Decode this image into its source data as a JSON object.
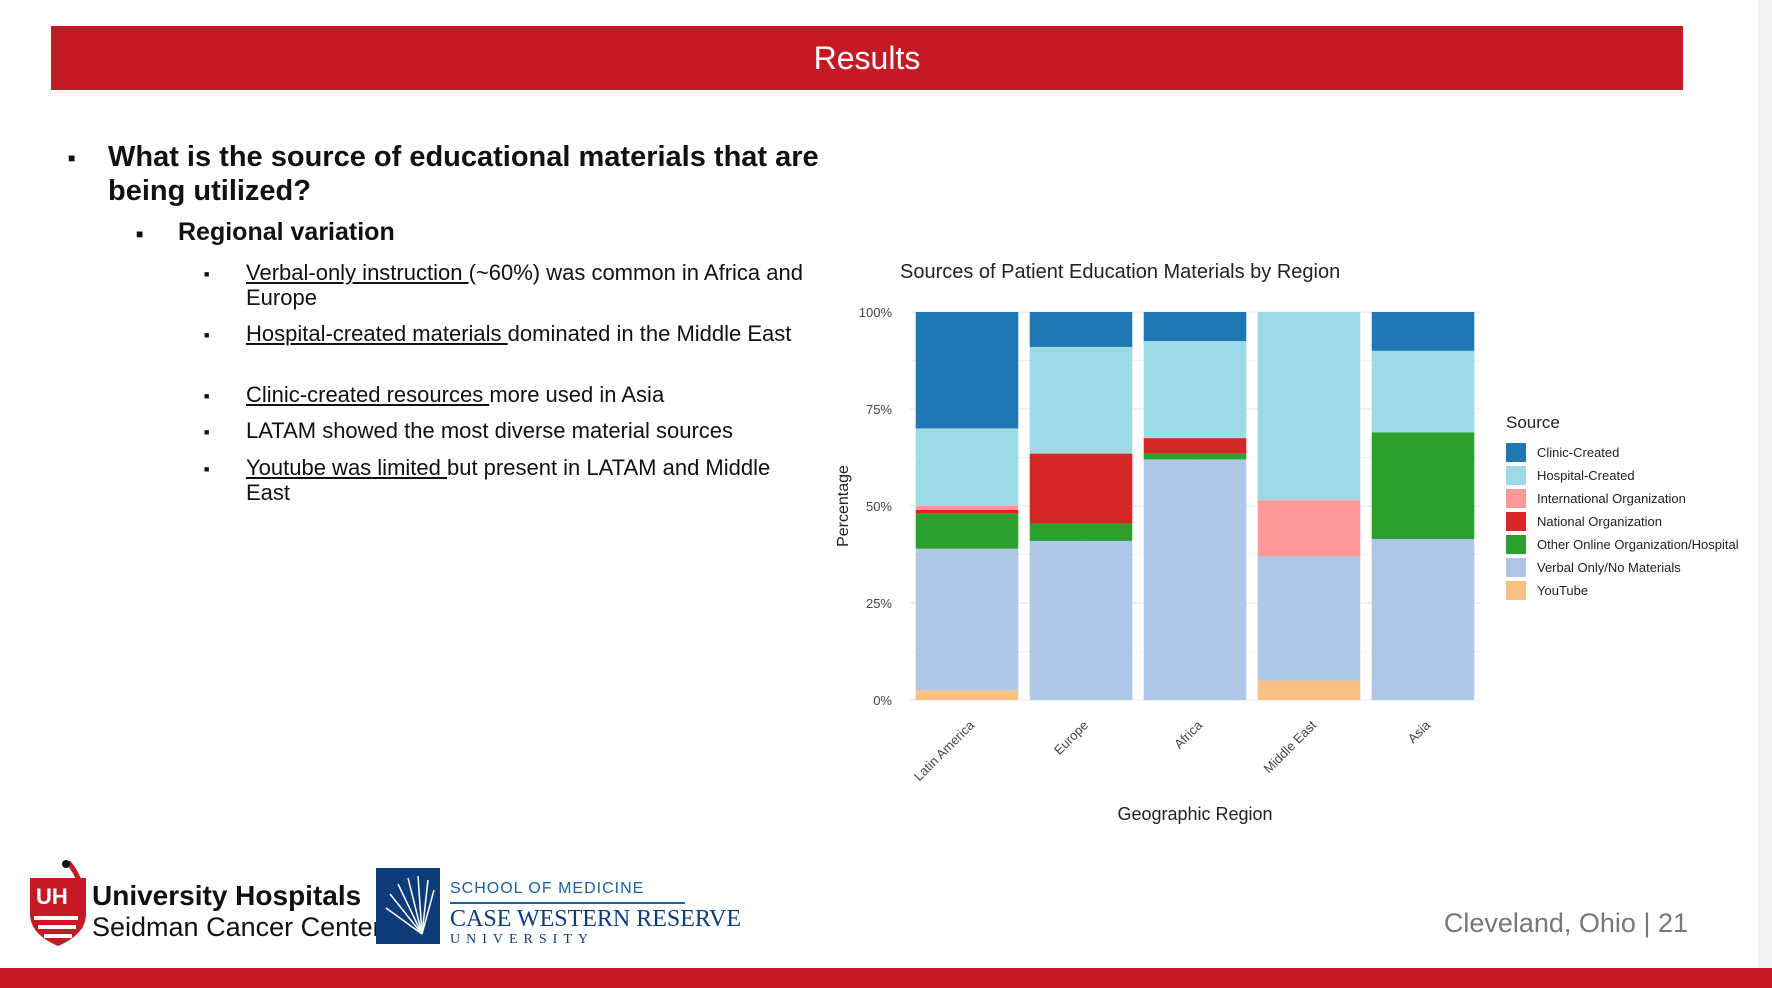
{
  "header": {
    "title": "Results"
  },
  "content": {
    "question": "What is the source of educational materials that are being utilized?",
    "subheading": "Regional variation",
    "points": [
      {
        "underlined": "Verbal-only instruction ",
        "rest": "(~60%) was common in Africa and Europe"
      },
      {
        "underlined": "Hospital-created materials ",
        "rest": "dominated in the Middle East"
      },
      {
        "underlined": "Clinic-created resources ",
        "rest": "more used in Asia"
      },
      {
        "underlined": "",
        "rest": "LATAM showed the most diverse material sources"
      },
      {
        "underlined": "Youtube was limited ",
        "rest": "but present in LATAM and Middle East"
      }
    ]
  },
  "chart_data": {
    "type": "bar",
    "stacked": true,
    "title": "Sources of Patient Education Materials by Region",
    "xlabel": "Geographic Region",
    "ylabel": "Percentage",
    "ylim": [
      0,
      100
    ],
    "yticks": [
      "0%",
      "25%",
      "50%",
      "75%",
      "100%"
    ],
    "legend_title": "Source",
    "legend_position": "right",
    "grid": true,
    "categories": [
      "Latin America",
      "Europe",
      "Africa",
      "Middle East",
      "Asia"
    ],
    "series": [
      {
        "name": "YouTube",
        "color": "#f9c282",
        "values": [
          2.5,
          0,
          0,
          5,
          0
        ]
      },
      {
        "name": "Verbal Only/No Materials",
        "color": "#aec7e8",
        "values": [
          36.5,
          41,
          62,
          32,
          41.5
        ]
      },
      {
        "name": "Other Online Organization/Hospital",
        "color": "#2ca02c",
        "values": [
          9,
          4.5,
          1.5,
          0,
          27.5
        ]
      },
      {
        "name": "National Organization",
        "color": "#d62728",
        "values": [
          1,
          18,
          4,
          0,
          0
        ]
      },
      {
        "name": "International Organization",
        "color": "#ff9896",
        "values": [
          1,
          0,
          0,
          14.5,
          0
        ]
      },
      {
        "name": "Hospital-Created",
        "color": "#9edae5",
        "values": [
          20,
          27.5,
          25,
          48.5,
          21
        ]
      },
      {
        "name": "Clinic-Created",
        "color": "#1f77b4",
        "values": [
          30,
          9,
          7.5,
          0,
          10
        ]
      }
    ],
    "legend_order": [
      "Clinic-Created",
      "Hospital-Created",
      "International Organization",
      "National Organization",
      "Other Online Organization/Hospital",
      "Verbal Only/No Materials",
      "YouTube"
    ]
  },
  "footer": {
    "location": "Cleveland, Ohio  |  21",
    "uh_name": "University Hospitals",
    "uh_sub": "Seidman Cancer Center",
    "uh_badge": "UH",
    "cwru_school": "SCHOOL OF MEDICINE",
    "cwru_name": "CASE WESTERN RESERVE",
    "cwru_univ": "UNIVERSITY"
  }
}
